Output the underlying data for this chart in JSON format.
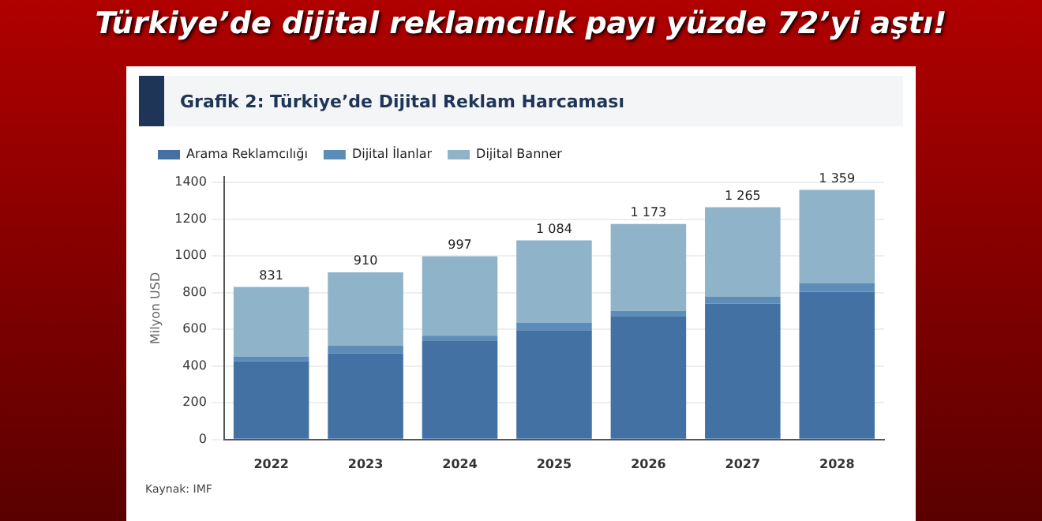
{
  "chart_data": {
    "type": "bar",
    "title": "Türkiye’de dijital reklamcılık payı yüzde 72’yi aştı!",
    "subtitle": "Grafik 2: Türkiye’de Dijital Reklam Harcaması",
    "ylabel": "Milyon USD",
    "categories": [
      "2022",
      "2023",
      "2024",
      "2025",
      "2026",
      "2027",
      "2028"
    ],
    "series": [
      {
        "name": "Arama Reklamcılığı",
        "color": "#4471a3",
        "values": [
          427,
          469,
          539,
          595,
          673,
          740,
          805
        ]
      },
      {
        "name": "Dijital İlanlar",
        "color": "#5b8db8",
        "values": [
          26,
          42,
          26,
          42,
          28,
          37,
          47
        ]
      },
      {
        "name": "Dijital Banner",
        "color": "#8fb3c9",
        "values": [
          378,
          399,
          432,
          447,
          472,
          488,
          507
        ]
      }
    ],
    "stacked": true,
    "totals": [
      "831",
      "910",
      "997",
      "1 084",
      "1 173",
      "1 265",
      "1 359"
    ],
    "ylim": [
      0,
      1430
    ],
    "yticks": [
      0,
      200,
      400,
      600,
      800,
      1000,
      1200,
      1400
    ],
    "grid": "y",
    "legend": "top left",
    "annotations": [
      "Kaynak: IMF"
    ]
  }
}
